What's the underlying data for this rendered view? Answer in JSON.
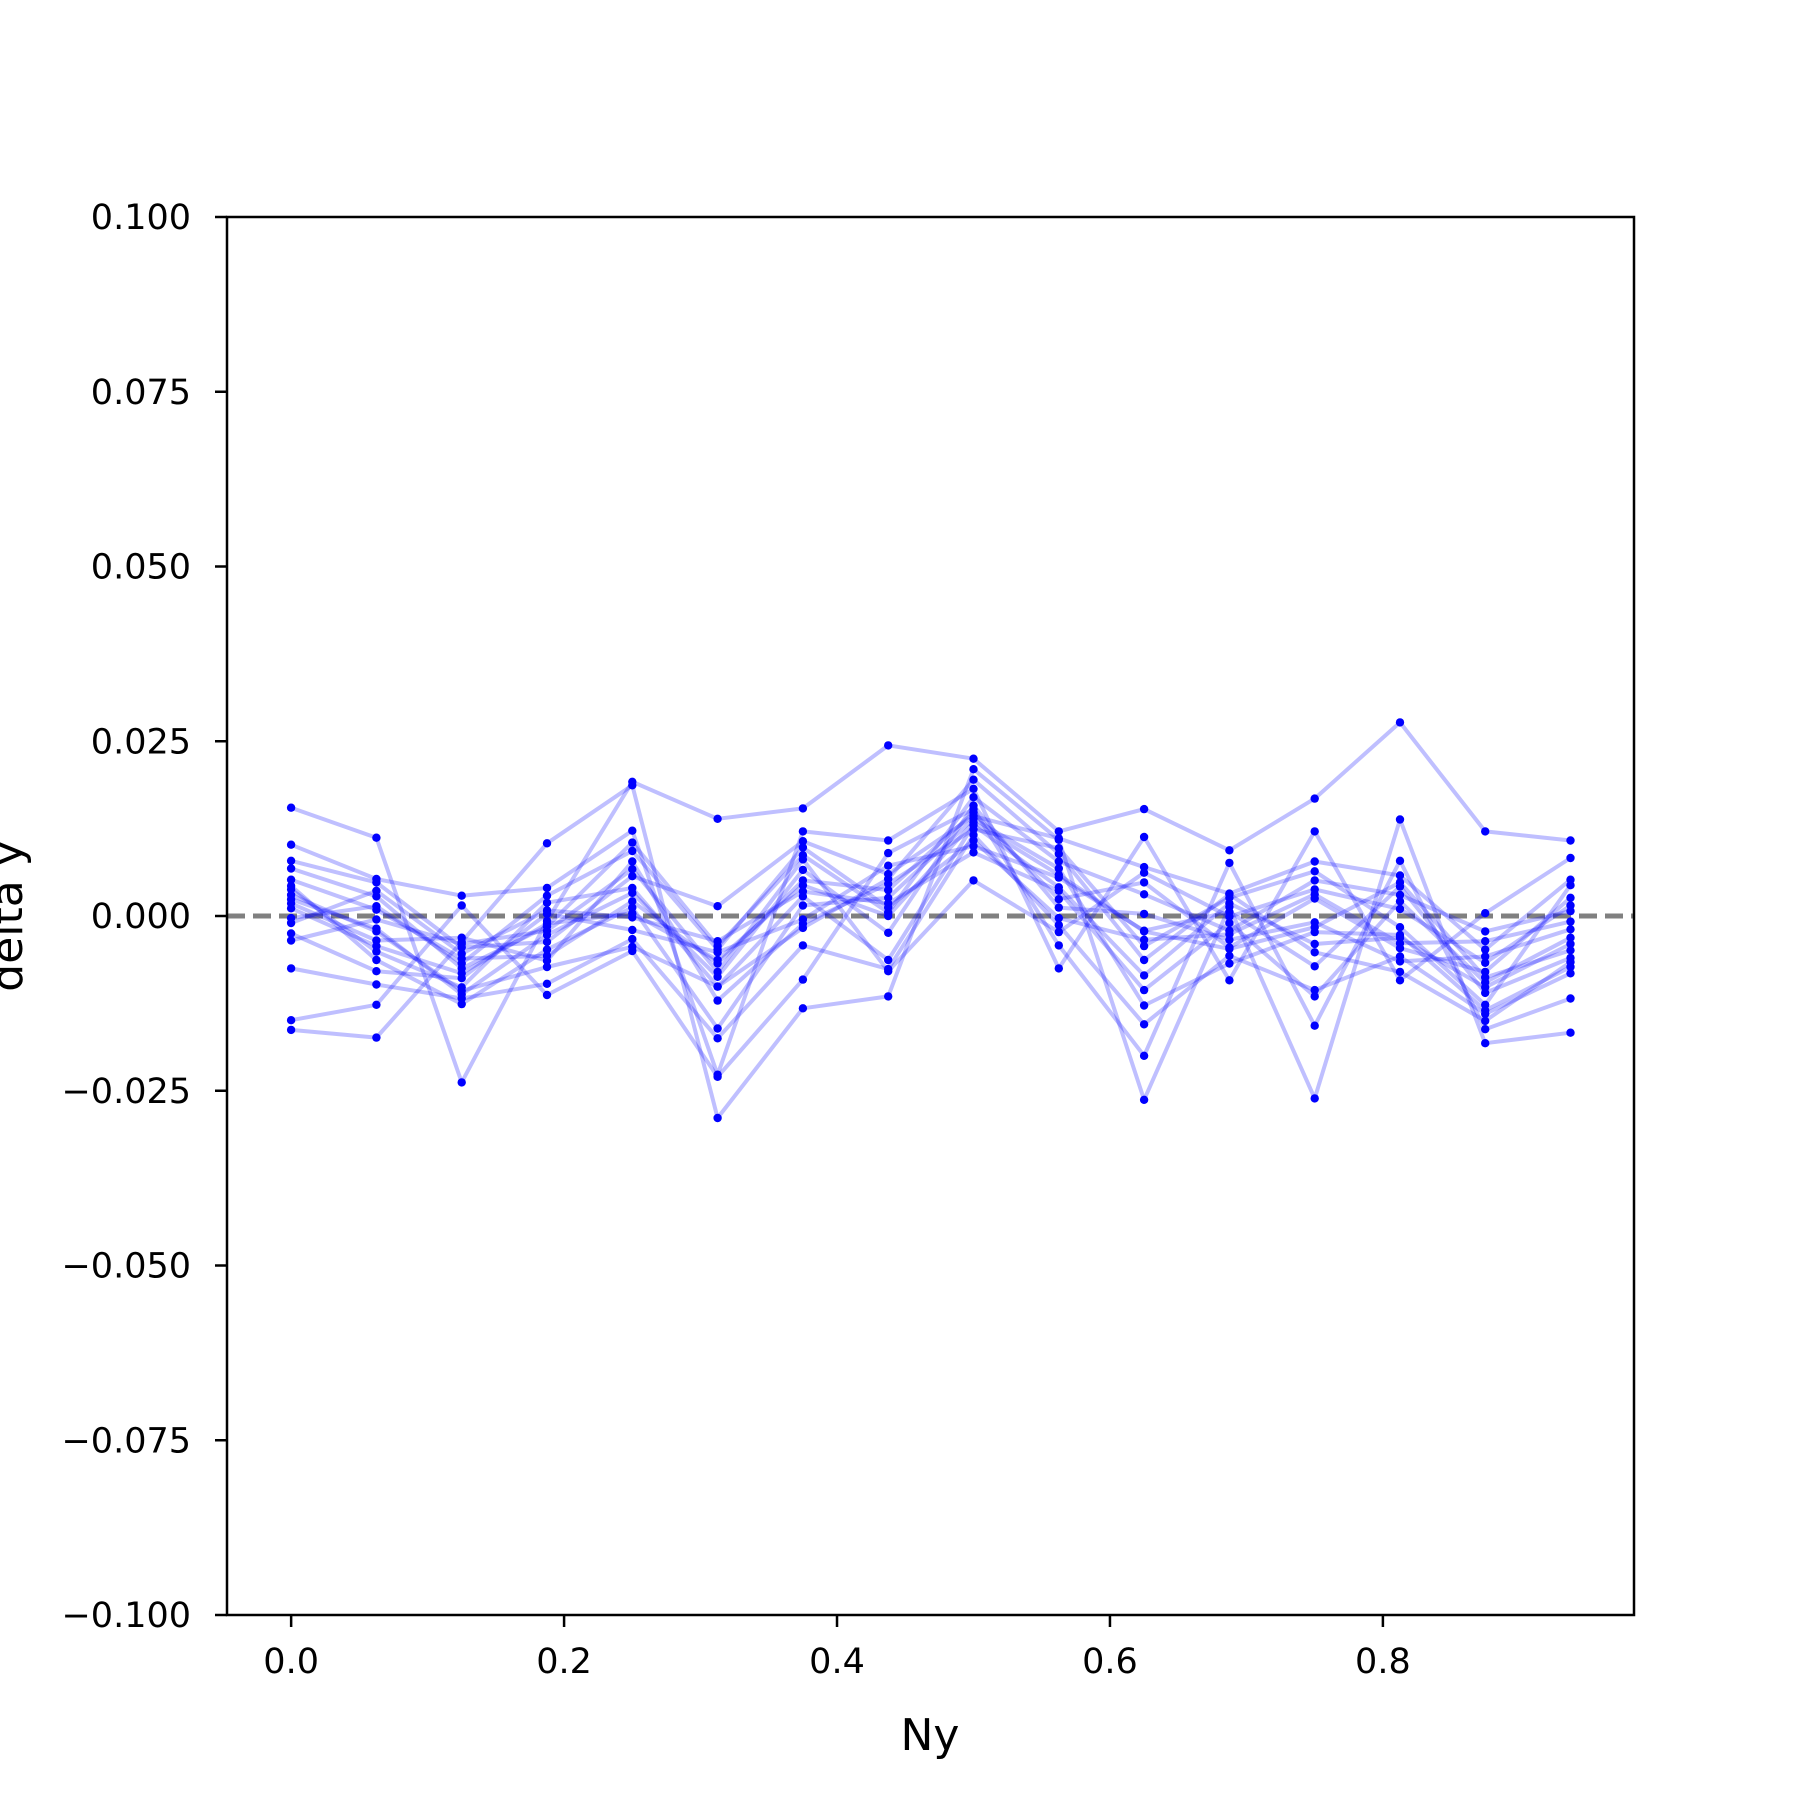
{
  "chart_data": {
    "type": "line",
    "xlabel": "Ny",
    "ylabel": "delta y",
    "xlim": [
      -0.047,
      0.984
    ],
    "ylim": [
      -0.1,
      0.1
    ],
    "x_ticks": [
      0.0,
      0.2,
      0.4,
      0.6,
      0.8
    ],
    "x_tick_labels": [
      "0.0",
      "0.2",
      "0.4",
      "0.6",
      "0.8"
    ],
    "y_ticks": [
      0.1,
      0.075,
      0.05,
      0.025,
      0.0,
      -0.025,
      -0.05,
      -0.075,
      -0.1
    ],
    "y_tick_labels": [
      "0.100",
      "0.075",
      "0.050",
      "0.025",
      "0.000",
      "−0.025",
      "−0.050",
      "−0.075",
      "−0.100"
    ],
    "reference_line": {
      "y": 0.0,
      "style": "dashed",
      "color": "#808080"
    },
    "series_color": "#0000ff",
    "x": [
      0.0,
      0.0625,
      0.125,
      0.1875,
      0.25,
      0.3125,
      0.375,
      0.4375,
      0.5,
      0.5625,
      0.625,
      0.6875,
      0.75,
      0.8125,
      0.875,
      0.9375
    ],
    "series": [
      {
        "values": [
          0.0155,
          0.0112,
          -0.0238,
          -0.0007,
          0.0192,
          0.0139,
          0.0154,
          0.0244,
          0.0225,
          0.0121,
          0.0153,
          0.0094,
          0.0168,
          0.0277,
          0.0121,
          0.0108
        ]
      },
      {
        "values": [
          -0.0163,
          -0.0174,
          -0.0037,
          0.0104,
          0.0187,
          -0.0289,
          -0.0132,
          -0.0115,
          0.021,
          0.0109,
          -0.0263,
          0.0013,
          -0.0261,
          0.0138,
          -0.0182,
          -0.0167
        ]
      },
      {
        "values": [
          0.0102,
          0.0053,
          0.0029,
          0.004,
          0.0122,
          -0.0227,
          0.0121,
          0.0108,
          0.0182,
          -0.0075,
          0.0113,
          -0.0092,
          0.0121,
          -0.0092,
          0.0004,
          0.0083
        ]
      },
      {
        "values": [
          -0.0149,
          -0.0127,
          0.0015,
          -0.0113,
          -0.005,
          -0.023,
          -0.0091,
          0.009,
          0.0153,
          -0.0042,
          -0.02,
          0.0076,
          -0.0157,
          0.0079,
          -0.0162,
          -0.0118
        ]
      },
      {
        "values": [
          0.0079,
          0.0048,
          -0.0045,
          -0.0037,
          0.0057,
          0.0014,
          0.0107,
          0.006,
          0.0143,
          0.0111,
          0.007,
          0.0032,
          0.0078,
          0.0058,
          -0.0048,
          0.0052
        ]
      },
      {
        "values": [
          -0.0075,
          -0.0098,
          -0.0118,
          -0.0097,
          -0.0033,
          -0.0175,
          -0.0042,
          -0.0076,
          0.0116,
          -0.0013,
          -0.0155,
          -0.0057,
          -0.0106,
          -0.0058,
          -0.014,
          -0.0082
        ]
      },
      {
        "values": [
          0.0068,
          0.0028,
          -0.0075,
          -0.0015,
          0.0105,
          -0.0043,
          0.0087,
          0.0005,
          0.017,
          0.0078,
          0.0031,
          -0.0021,
          0.0051,
          0.003,
          -0.0022,
          0.0007
        ]
      },
      {
        "values": [
          0.0038,
          -0.0051,
          -0.0102,
          0.0019,
          0.004,
          -0.0101,
          0.0028,
          -0.0063,
          0.013,
          0.0041,
          -0.0085,
          0.0018,
          -0.004,
          -0.0031,
          -0.0102,
          -0.004
        ]
      },
      {
        "values": [
          0.0052,
          0.0009,
          -0.0061,
          -0.0057,
          0.0021,
          -0.0068,
          0.0051,
          0.0037,
          0.0148,
          0.0024,
          0.0048,
          -0.0045,
          0.0025,
          -0.0046,
          -0.008,
          0.0026
        ]
      },
      {
        "values": [
          -0.0025,
          -0.0079,
          -0.0089,
          0.0003,
          -0.002,
          -0.0052,
          -0.0005,
          0.0072,
          0.01,
          0.0055,
          -0.0021,
          0.0006,
          -0.0072,
          0.0042,
          -0.011,
          -0.006
        ]
      },
      {
        "values": [
          0.0024,
          -0.0018,
          -0.0112,
          -0.0027,
          0.0033,
          -0.0087,
          0.0066,
          -0.0024,
          0.0158,
          0.0012,
          0.0003,
          -0.0034,
          -0.0009,
          -0.0065,
          -0.0058,
          -0.0019
        ]
      },
      {
        "values": [
          0.0018,
          -0.0035,
          -0.0031,
          -0.0064,
          0.0078,
          -0.0121,
          -0.0011,
          0.0046,
          0.0124,
          0.0097,
          -0.0043,
          0.0026,
          0.0064,
          -0.0016,
          -0.0127,
          0.0044
        ]
      },
      {
        "values": [
          -0.001,
          0.0036,
          -0.0054,
          0.0008,
          -0.0002,
          -0.0036,
          0.0035,
          0.0018,
          0.0091,
          0.0036,
          -0.0106,
          -0.001,
          -0.0115,
          0.0021,
          -0.0095,
          -0.0031
        ]
      },
      {
        "values": [
          0.0043,
          -0.0063,
          -0.0126,
          -0.0048,
          0.0012,
          -0.0161,
          0.0015,
          0.0026,
          0.0139,
          0.0068,
          -0.0128,
          -0.0068,
          -0.0023,
          -0.0027,
          -0.0135,
          -0.0073
        ]
      },
      {
        "values": [
          -0.0035,
          -0.0005,
          -0.004,
          -0.0021,
          0.0067,
          -0.008,
          0.0081,
          -0.0079,
          0.0051,
          -0.0023,
          0.0062,
          -0.0001,
          0.0038,
          0.001,
          -0.0067,
          0.0015
        ]
      },
      {
        "values": [
          0.003,
          -0.0022,
          -0.0107,
          -0.0073,
          -0.0044,
          -0.0101,
          -0.0017,
          0.0053,
          0.0195,
          0.0089,
          -0.0063,
          0.0031,
          -0.0052,
          -0.008,
          -0.015,
          -0.0066
        ]
      },
      {
        "values": [
          -0.0003,
          0.0014,
          -0.0068,
          0.0029,
          0.0093,
          -0.0048,
          0.0098,
          0.0012,
          0.0108,
          -0.0003,
          -0.0034,
          -0.0026,
          0.0031,
          -0.0039,
          -0.0036,
          -0.0008
        ]
      },
      {
        "values": [
          0.0011,
          -0.0043,
          -0.0082,
          -0.0011,
          0.0004,
          -0.0063,
          0.0044,
          0.0,
          0.0134,
          0.0059,
          -0.0022,
          -0.0047,
          -0.0016,
          0.0048,
          -0.0088,
          -0.0049
        ]
      }
    ]
  }
}
